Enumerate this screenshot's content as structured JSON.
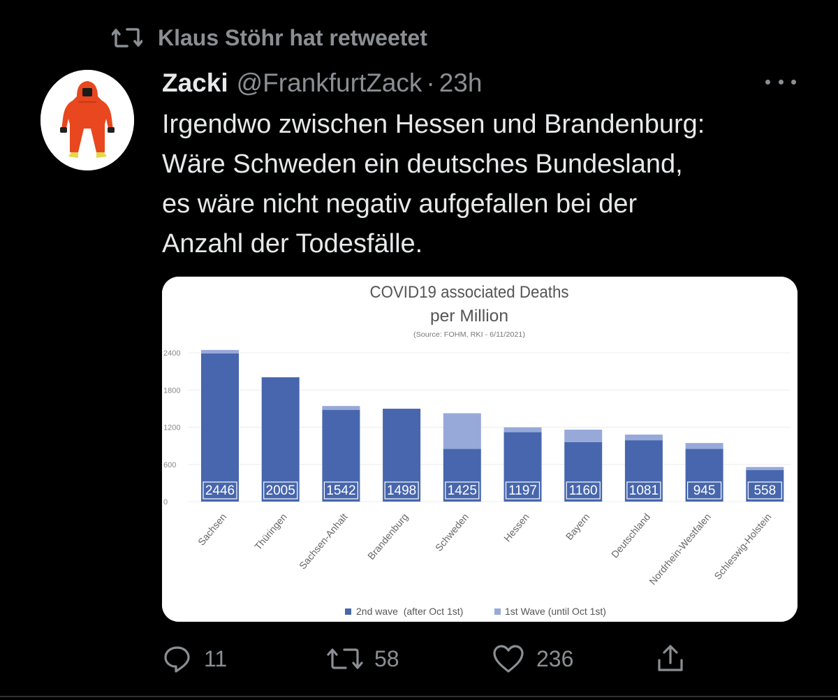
{
  "retweet": {
    "label": "Klaus Stöhr hat retweetet"
  },
  "tweet": {
    "name": "Zacki",
    "handle": "@FrankfurtZack",
    "separator": "·",
    "time": "23h",
    "text_lines": [
      "Irgendwo zwischen Hessen und Brandenburg:",
      "Wäre Schweden ein deutsches Bundesland,",
      "es wäre nicht negativ aufgefallen bei der",
      "Anzahl der Todesfälle."
    ]
  },
  "actions": {
    "replies": "11",
    "retweets": "58",
    "likes": "236"
  },
  "colors": {
    "second_wave": "#4766ad",
    "first_wave": "#97a9d9"
  },
  "chart_data": {
    "type": "bar",
    "stacked": true,
    "title": "COVID19 associated Deaths",
    "subtitle": "per Million",
    "source": "(Source: FOHM, RKI - 6/11/2021)",
    "categories": [
      "Sachsen",
      "Thüringen",
      "Sachsen-Anhalt",
      "Brandenburg",
      "Schweden",
      "Hessen",
      "Bayern",
      "Deutschland",
      "Nordrhein-Westfalen",
      "Schleswig-Holstein"
    ],
    "totals": [
      "2446",
      "2005",
      "1542",
      "1498",
      "1425",
      "1197",
      "1160",
      "1081",
      "945",
      "558"
    ],
    "series": [
      {
        "name": "2nd wave  (after Oct 1st)",
        "color": "#4766ad",
        "values": [
          2390,
          2005,
          1480,
          1498,
          850,
          1120,
          960,
          990,
          850,
          510
        ]
      },
      {
        "name": "1st Wave (until Oct 1st)",
        "color": "#97a9d9",
        "values": [
          56,
          0,
          62,
          0,
          575,
          77,
          200,
          91,
          95,
          48
        ]
      }
    ],
    "yticks": [
      "0",
      "600",
      "1200",
      "1800",
      "2400"
    ],
    "ylim": [
      0,
      2400
    ],
    "legend_position": "bottom"
  }
}
